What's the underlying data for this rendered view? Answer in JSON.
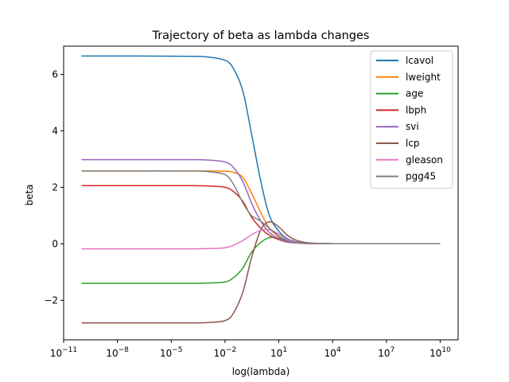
{
  "chart_data": {
    "type": "line",
    "title": "Trajectory of beta as lambda changes",
    "xlabel": "log(lambda)",
    "ylabel": "beta",
    "x_scale": "log",
    "xlim": [
      1e-11,
      100000000000.0
    ],
    "ylim": [
      -3.4,
      7.0
    ],
    "x_ticks": [
      {
        "value": 1e-11,
        "base": "10",
        "exp": "−11"
      },
      {
        "value": 1e-08,
        "base": "10",
        "exp": "−8"
      },
      {
        "value": 1e-05,
        "base": "10",
        "exp": "−5"
      },
      {
        "value": 0.01,
        "base": "10",
        "exp": "−2"
      },
      {
        "value": 10,
        "base": "10",
        "exp": "1"
      },
      {
        "value": 10000.0,
        "base": "10",
        "exp": "4"
      },
      {
        "value": 10000000.0,
        "base": "10",
        "exp": "7"
      },
      {
        "value": 10000000000.0,
        "base": "10",
        "exp": "10"
      }
    ],
    "y_ticks": [
      {
        "value": -2,
        "label": "−2"
      },
      {
        "value": 0,
        "label": "0"
      },
      {
        "value": 2,
        "label": "2"
      },
      {
        "value": 4,
        "label": "4"
      },
      {
        "value": 6,
        "label": "6"
      }
    ],
    "grid": false,
    "legend_position": "top-right",
    "x": [
      1e-10,
      1e-07,
      0.0001,
      0.001,
      0.01,
      0.03,
      0.1,
      0.3,
      1,
      3,
      10,
      30,
      100,
      300,
      1000,
      10000,
      100000,
      1000000.0,
      100000000.0,
      10000000000.0
    ],
    "series": [
      {
        "name": "lcavol",
        "color": "#1f77b4",
        "values": [
          6.65,
          6.65,
          6.64,
          6.62,
          6.5,
          6.2,
          5.4,
          3.9,
          2.2,
          1.0,
          0.45,
          0.18,
          0.07,
          0.03,
          0.01,
          0.005,
          0.003,
          0.002,
          0.002,
          0.002
        ]
      },
      {
        "name": "lweight",
        "color": "#ff7f0e",
        "values": [
          2.58,
          2.58,
          2.58,
          2.58,
          2.57,
          2.53,
          2.35,
          1.8,
          1.1,
          0.55,
          0.25,
          0.1,
          0.04,
          0.02,
          0.01,
          0.005,
          0.003,
          0.002,
          0.002,
          0.002
        ]
      },
      {
        "name": "age",
        "color": "#2ca02c",
        "values": [
          -1.4,
          -1.4,
          -1.4,
          -1.39,
          -1.35,
          -1.2,
          -0.85,
          -0.3,
          0.05,
          0.22,
          0.2,
          0.1,
          0.04,
          0.02,
          0.01,
          0.005,
          0.003,
          0.002,
          0.002,
          0.002
        ]
      },
      {
        "name": "lbph",
        "color": "#d62728",
        "values": [
          2.06,
          2.06,
          2.06,
          2.05,
          2.0,
          1.85,
          1.5,
          0.95,
          0.55,
          0.3,
          0.15,
          0.06,
          0.03,
          0.01,
          0.005,
          0.003,
          0.002,
          0.002,
          0.002,
          0.002
        ]
      },
      {
        "name": "svi",
        "color": "#9467bd",
        "values": [
          2.98,
          2.98,
          2.98,
          2.97,
          2.9,
          2.7,
          2.2,
          1.45,
          0.8,
          0.4,
          0.18,
          0.07,
          0.03,
          0.01,
          0.005,
          0.003,
          0.002,
          0.002,
          0.002,
          0.002
        ]
      },
      {
        "name": "lcp",
        "color": "#8c564b",
        "values": [
          -2.8,
          -2.8,
          -2.8,
          -2.79,
          -2.72,
          -2.45,
          -1.7,
          -0.5,
          0.5,
          0.78,
          0.6,
          0.3,
          0.12,
          0.05,
          0.02,
          0.006,
          0.003,
          0.002,
          0.002,
          0.002
        ]
      },
      {
        "name": "gleason",
        "color": "#e377c2",
        "values": [
          -0.18,
          -0.18,
          -0.18,
          -0.17,
          -0.14,
          -0.05,
          0.12,
          0.32,
          0.48,
          0.5,
          0.35,
          0.15,
          0.06,
          0.02,
          0.01,
          0.004,
          0.003,
          0.002,
          0.002,
          0.002
        ]
      },
      {
        "name": "pgg45",
        "color": "#7f7f7f",
        "values": [
          2.58,
          2.58,
          2.58,
          2.56,
          2.45,
          2.1,
          1.45,
          1.0,
          0.8,
          0.55,
          0.28,
          0.11,
          0.04,
          0.02,
          0.01,
          0.004,
          0.003,
          0.002,
          0.002,
          0.002
        ]
      }
    ]
  }
}
